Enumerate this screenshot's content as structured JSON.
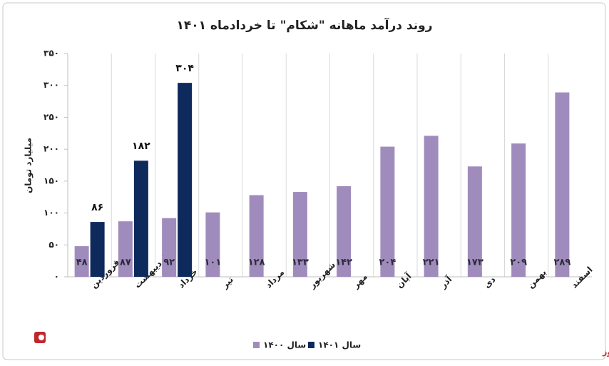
{
  "chart_data": {
    "type": "bar",
    "title": "روند درآمد ماهانه \"شکام\" تا خردادماه ۱۴۰۱",
    "y_label": "میلیارد تومان",
    "categories": [
      "فروردین",
      "اردیبهشت",
      "خرداد",
      "تیر",
      "مرداد",
      "شهریور",
      "مهر",
      "آبان",
      "آذر",
      "دی",
      "بهمن",
      "اسفند"
    ],
    "series": [
      {
        "name": "سال ۱۴۰۰",
        "color": "#a08cbc",
        "values": [
          48,
          87,
          92,
          101,
          128,
          133,
          142,
          204,
          221,
          173,
          209,
          289
        ],
        "value_labels": [
          "۴۸",
          "۸۷",
          "۹۲",
          "۱۰۱",
          "۱۲۸",
          "۱۳۳",
          "۱۴۲",
          "۲۰۴",
          "۲۲۱",
          "۱۷۳",
          "۲۰۹",
          "۲۸۹"
        ]
      },
      {
        "name": "سال ۱۴۰۱",
        "color": "#0e2a5c",
        "values": [
          86,
          182,
          304,
          null,
          null,
          null,
          null,
          null,
          null,
          null,
          null,
          null
        ],
        "value_labels": [
          "۸۶",
          "۱۸۲",
          "۳۰۴",
          null,
          null,
          null,
          null,
          null,
          null,
          null,
          null,
          null
        ]
      }
    ],
    "ylim": [
      0,
      350
    ],
    "yticks": [
      {
        "value": 0,
        "label": "۰"
      },
      {
        "value": 50,
        "label": "۵۰"
      },
      {
        "value": 100,
        "label": "۱۰۰"
      },
      {
        "value": 150,
        "label": "۱۵۰"
      },
      {
        "value": 200,
        "label": "۲۰۰"
      },
      {
        "value": 250,
        "label": "۲۵۰"
      },
      {
        "value": 300,
        "label": "۳۰۰"
      },
      {
        "value": 350,
        "label": "۳۵۰"
      }
    ],
    "legend": "bottom",
    "source": "بورس نیوز"
  }
}
